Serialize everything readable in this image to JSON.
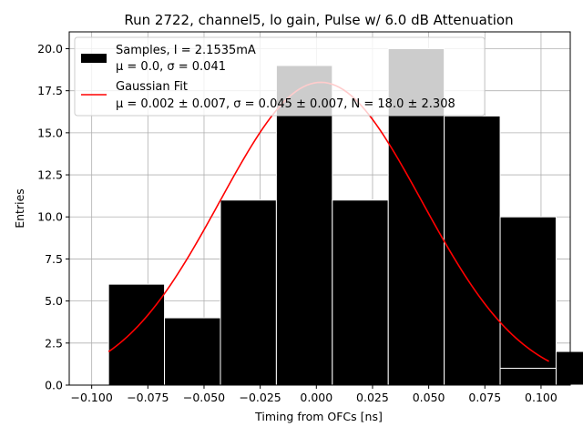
{
  "chart_data": {
    "type": "bar",
    "title": "Run 2722, channel5, lo gain, Pulse w/ 6.0 dB Attenuation",
    "xlabel": "Timing from OFCs [ns]",
    "ylabel": "Entries",
    "xlim": [
      -0.11,
      0.113
    ],
    "ylim": [
      0,
      21
    ],
    "grid": true,
    "legend_position": "top-left",
    "x_ticks": [
      -0.1,
      -0.075,
      -0.05,
      -0.025,
      0.0,
      0.025,
      0.05,
      0.075,
      0.1
    ],
    "x_tick_labels": [
      "−0.100",
      "−0.075",
      "−0.050",
      "−0.025",
      "0.000",
      "0.025",
      "0.050",
      "0.075",
      "0.100"
    ],
    "y_ticks": [
      0,
      2.5,
      5,
      7.5,
      10,
      12.5,
      15,
      17.5,
      20
    ],
    "y_tick_labels": [
      "0.0",
      "2.5",
      "5.0",
      "7.5",
      "10.0",
      "12.5",
      "15.0",
      "17.5",
      "20.0"
    ],
    "histogram": {
      "bin_edges": [
        -0.0925,
        -0.0676,
        -0.0427,
        -0.0178,
        0.0071,
        0.032,
        0.0569,
        0.0818,
        0.1067,
        0.1316
      ],
      "bins": [
        {
          "x0": -0.0925,
          "x1": -0.0676,
          "value": 6
        },
        {
          "x0": -0.0676,
          "x1": -0.0427,
          "value": 4
        },
        {
          "x0": -0.0427,
          "x1": -0.0178,
          "value": 11
        },
        {
          "x0": -0.0178,
          "x1": 0.0071,
          "value": 19
        },
        {
          "x0": 0.0071,
          "x1": 0.032,
          "value": 11
        },
        {
          "x0": 0.032,
          "x1": 0.0569,
          "value": 20
        },
        {
          "x0": 0.0569,
          "x1": 0.0818,
          "value": 16
        },
        {
          "x0": 0.0818,
          "x1": 0.1067,
          "value": 10
        },
        {
          "x0": 0.1067,
          "x1": 0.1316,
          "value": 2
        }
      ],
      "extra_bin": {
        "x0": 0.0818,
        "x1": 0.1067,
        "value": 1
      },
      "fill_color": "#000000",
      "edge_color": "#ffffff"
    },
    "series": [
      {
        "name": "Gaussian Fit",
        "type": "line",
        "color": "#ff0000",
        "mu": 0.002,
        "sigma": 0.045,
        "N": 18.0,
        "x_range": [
          -0.0925,
          0.1035
        ]
      }
    ],
    "legend": [
      {
        "label_line1": "Samples, I = 2.1535mA",
        "label_line2": "μ = 0.0, σ = 0.041",
        "swatch": "patch",
        "color": "#000000"
      },
      {
        "label_line1": "Gaussian Fit",
        "label_line2": "μ = 0.002 ± 0.007, σ = 0.045 ± 0.007, N = 18.0 ± 2.308",
        "swatch": "line",
        "color": "#ff0000"
      }
    ]
  }
}
